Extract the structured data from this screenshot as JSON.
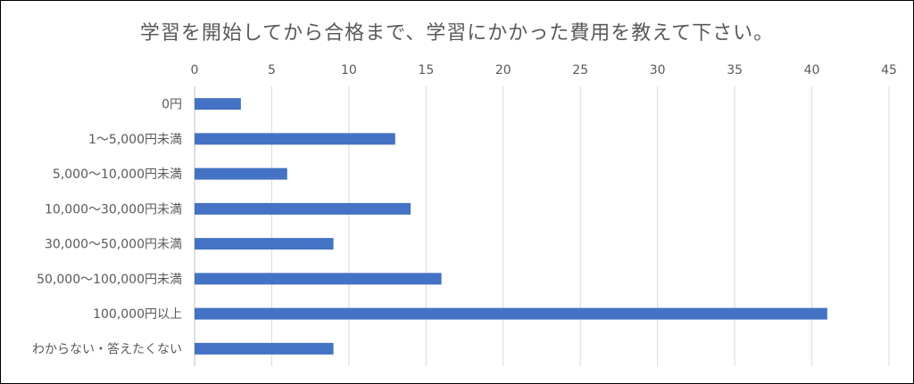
{
  "chart_data": {
    "type": "bar",
    "orientation": "horizontal",
    "title": "学習を開始してから合格まで、学習にかかった費用を教えて下さい。",
    "categories": [
      "0円",
      "1～5,000円未満",
      "5,000～10,000円未満",
      "10,000～30,000円未満",
      "30,000～50,000円未満",
      "50,000～100,000円未満",
      "100,000円以上",
      "わからない・答えたくない"
    ],
    "values": [
      3,
      13,
      6,
      14,
      9,
      16,
      41,
      9
    ],
    "xlim": [
      0,
      45
    ],
    "xticks": [
      "0",
      "5",
      "10",
      "15",
      "20",
      "25",
      "30",
      "35",
      "40",
      "45"
    ],
    "xaxis_position": "top",
    "grid": true,
    "legend": "none",
    "bar_color": "#4472C4"
  }
}
